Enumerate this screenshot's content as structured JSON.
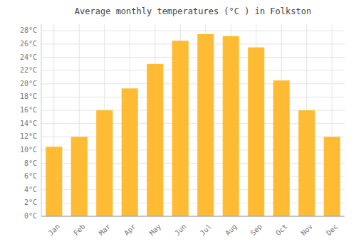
{
  "chart_data": {
    "type": "bar",
    "title": "Average monthly temperatures (°C ) in Folkston",
    "categories": [
      "Jan",
      "Feb",
      "Mar",
      "Apr",
      "May",
      "Jun",
      "Jul",
      "Aug",
      "Sep",
      "Oct",
      "Nov",
      "Dec"
    ],
    "values": [
      10.5,
      12.0,
      16.0,
      19.3,
      23.0,
      26.5,
      27.5,
      27.2,
      25.5,
      20.5,
      16.0,
      12.0
    ],
    "color": "#FFBB33",
    "ylim": [
      0,
      29
    ],
    "yticks": [
      {
        "value": 0,
        "label": "0°C"
      },
      {
        "value": 2,
        "label": "2°C"
      },
      {
        "value": 4,
        "label": "4°C"
      },
      {
        "value": 6,
        "label": "6°C"
      },
      {
        "value": 8,
        "label": "8°C"
      },
      {
        "value": 10,
        "label": "10°C"
      },
      {
        "value": 12,
        "label": "12°C"
      },
      {
        "value": 14,
        "label": "14°C"
      },
      {
        "value": 16,
        "label": "16°C"
      },
      {
        "value": 18,
        "label": "18°C"
      },
      {
        "value": 20,
        "label": "20°C"
      },
      {
        "value": 22,
        "label": "22°C"
      },
      {
        "value": 24,
        "label": "24°C"
      },
      {
        "value": 26,
        "label": "26°C"
      },
      {
        "value": 28,
        "label": "28°C"
      }
    ],
    "grid": true
  }
}
